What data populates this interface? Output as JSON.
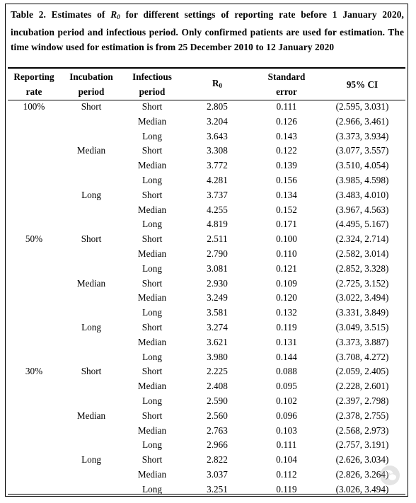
{
  "caption": {
    "prefix": "Table 2. Estimates of ",
    "r0_main": "R",
    "r0_sub": "0",
    "suffix": " for different settings of reporting rate before 1 January 2020, incubation period and infectious period. Only confirmed patients are used for estimation. The time window used for estimation is from 25 December 2010 to 12 January 2020"
  },
  "headers": {
    "reporting_rate": [
      "Reporting",
      "rate"
    ],
    "incubation_period": [
      "Incubation",
      "period"
    ],
    "infectious_period": [
      "Infectious",
      "period"
    ],
    "r0_main": "R",
    "r0_sub": "0",
    "standard_error": [
      "Standard",
      "error"
    ],
    "ci": "95% CI"
  },
  "rows": [
    {
      "rate": "100%",
      "incubation": "Short",
      "infectious": "Short",
      "r0": "2.805",
      "se": "0.111",
      "ci": "(2.595, 3.031)"
    },
    {
      "rate": "",
      "incubation": "",
      "infectious": "Median",
      "r0": "3.204",
      "se": "0.126",
      "ci": "(2.966, 3.461)"
    },
    {
      "rate": "",
      "incubation": "",
      "infectious": "Long",
      "r0": "3.643",
      "se": "0.143",
      "ci": "(3.373, 3.934)"
    },
    {
      "rate": "",
      "incubation": "Median",
      "infectious": "Short",
      "r0": "3.308",
      "se": "0.122",
      "ci": "(3.077, 3.557)"
    },
    {
      "rate": "",
      "incubation": "",
      "infectious": "Median",
      "r0": "3.772",
      "se": "0.139",
      "ci": "(3.510, 4.054)"
    },
    {
      "rate": "",
      "incubation": "",
      "infectious": "Long",
      "r0": "4.281",
      "se": "0.156",
      "ci": "(3.985, 4.598)"
    },
    {
      "rate": "",
      "incubation": "Long",
      "infectious": "Short",
      "r0": "3.737",
      "se": "0.134",
      "ci": "(3.483, 4.010)"
    },
    {
      "rate": "",
      "incubation": "",
      "infectious": "Median",
      "r0": "4.255",
      "se": "0.152",
      "ci": "(3.967, 4.563)"
    },
    {
      "rate": "",
      "incubation": "",
      "infectious": "Long",
      "r0": "4.819",
      "se": "0.171",
      "ci": "(4.495, 5.167)"
    },
    {
      "rate": "50%",
      "incubation": "Short",
      "infectious": "Short",
      "r0": "2.511",
      "se": "0.100",
      "ci": "(2.324, 2.714)"
    },
    {
      "rate": "",
      "incubation": "",
      "infectious": "Median",
      "r0": "2.790",
      "se": "0.110",
      "ci": "(2.582, 3.014)"
    },
    {
      "rate": "",
      "incubation": "",
      "infectious": "Long",
      "r0": "3.081",
      "se": "0.121",
      "ci": "(2.852, 3.328)"
    },
    {
      "rate": "",
      "incubation": "Median",
      "infectious": "Short",
      "r0": "2.930",
      "se": "0.109",
      "ci": "(2.725, 3.152)"
    },
    {
      "rate": "",
      "incubation": "",
      "infectious": "Median",
      "r0": "3.249",
      "se": "0.120",
      "ci": "(3.022, 3.494)"
    },
    {
      "rate": "",
      "incubation": "",
      "infectious": "Long",
      "r0": "3.581",
      "se": "0.132",
      "ci": "(3.331, 3.849)"
    },
    {
      "rate": "",
      "incubation": "Long",
      "infectious": "Short",
      "r0": "3.274",
      "se": "0.119",
      "ci": "(3.049, 3.515)"
    },
    {
      "rate": "",
      "incubation": "",
      "infectious": "Median",
      "r0": "3.621",
      "se": "0.131",
      "ci": "(3.373, 3.887)"
    },
    {
      "rate": "",
      "incubation": "",
      "infectious": "Long",
      "r0": "3.980",
      "se": "0.144",
      "ci": "(3.708, 4.272)"
    },
    {
      "rate": "30%",
      "incubation": "Short",
      "infectious": "Short",
      "r0": "2.225",
      "se": "0.088",
      "ci": "(2.059, 2.405)"
    },
    {
      "rate": "",
      "incubation": "",
      "infectious": "Median",
      "r0": "2.408",
      "se": "0.095",
      "ci": "(2.228, 2.601)"
    },
    {
      "rate": "",
      "incubation": "",
      "infectious": "Long",
      "r0": "2.590",
      "se": "0.102",
      "ci": "(2.397, 2.798)"
    },
    {
      "rate": "",
      "incubation": "Median",
      "infectious": "Short",
      "r0": "2.560",
      "se": "0.096",
      "ci": "(2.378, 2.755)"
    },
    {
      "rate": "",
      "incubation": "",
      "infectious": "Median",
      "r0": "2.763",
      "se": "0.103",
      "ci": "(2.568, 2.973)"
    },
    {
      "rate": "",
      "incubation": "",
      "infectious": "Long",
      "r0": "2.966",
      "se": "0.111",
      "ci": "(2.757, 3.191)"
    },
    {
      "rate": "",
      "incubation": "Long",
      "infectious": "Short",
      "r0": "2.822",
      "se": "0.104",
      "ci": "(2.626, 3.034)"
    },
    {
      "rate": "",
      "incubation": "",
      "infectious": "Median",
      "r0": "3.037",
      "se": "0.112",
      "ci": "(2.826, 3.264)"
    },
    {
      "rate": "",
      "incubation": "",
      "infectious": "Long",
      "r0": "3.251",
      "se": "0.119",
      "ci": "(3.026, 3.494)"
    }
  ],
  "watermark": {
    "icon": "wechat-icon"
  }
}
